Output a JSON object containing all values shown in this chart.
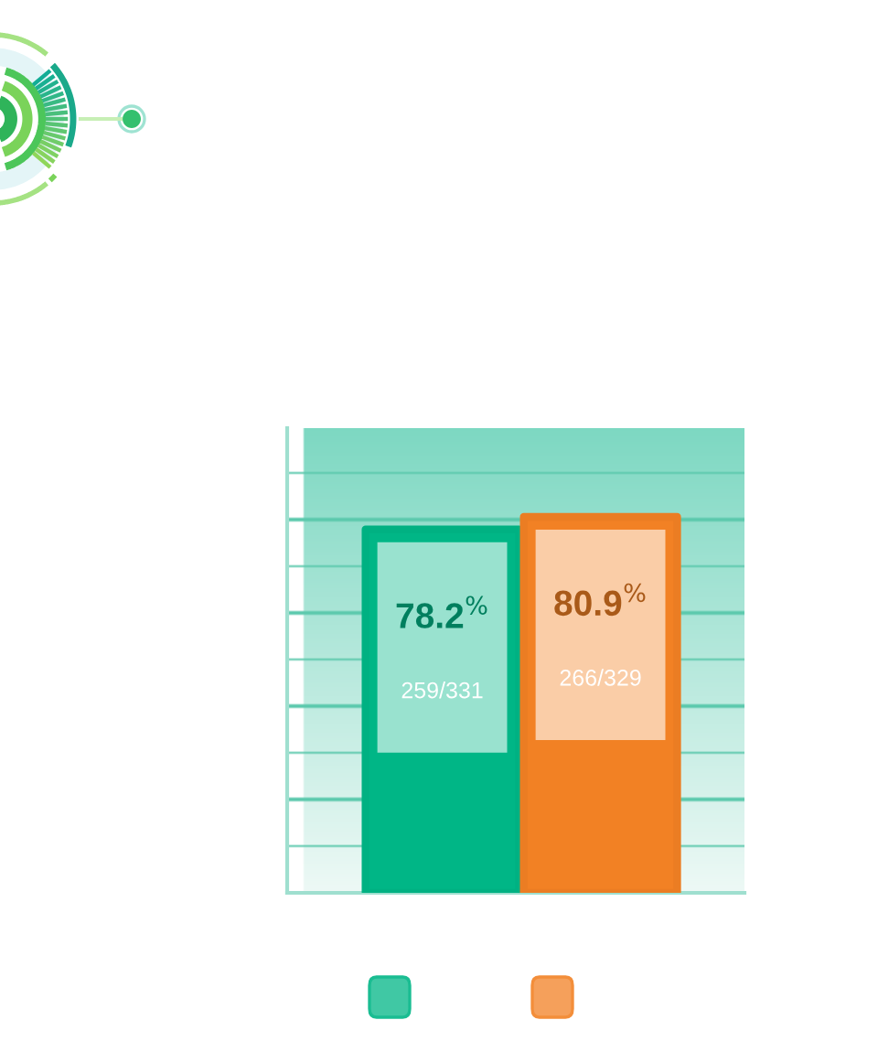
{
  "chart_data": {
    "type": "bar",
    "categories": [
      null,
      null
    ],
    "values": [
      78.2,
      80.9
    ],
    "colors": [
      "#00b686",
      "#f28124"
    ],
    "value_labels": [
      "78.2$^{%}$",
      "80.9$^{%}$"
    ],
    "annotations": [
      "259/331",
      "266/329"
    ]
  }
}
